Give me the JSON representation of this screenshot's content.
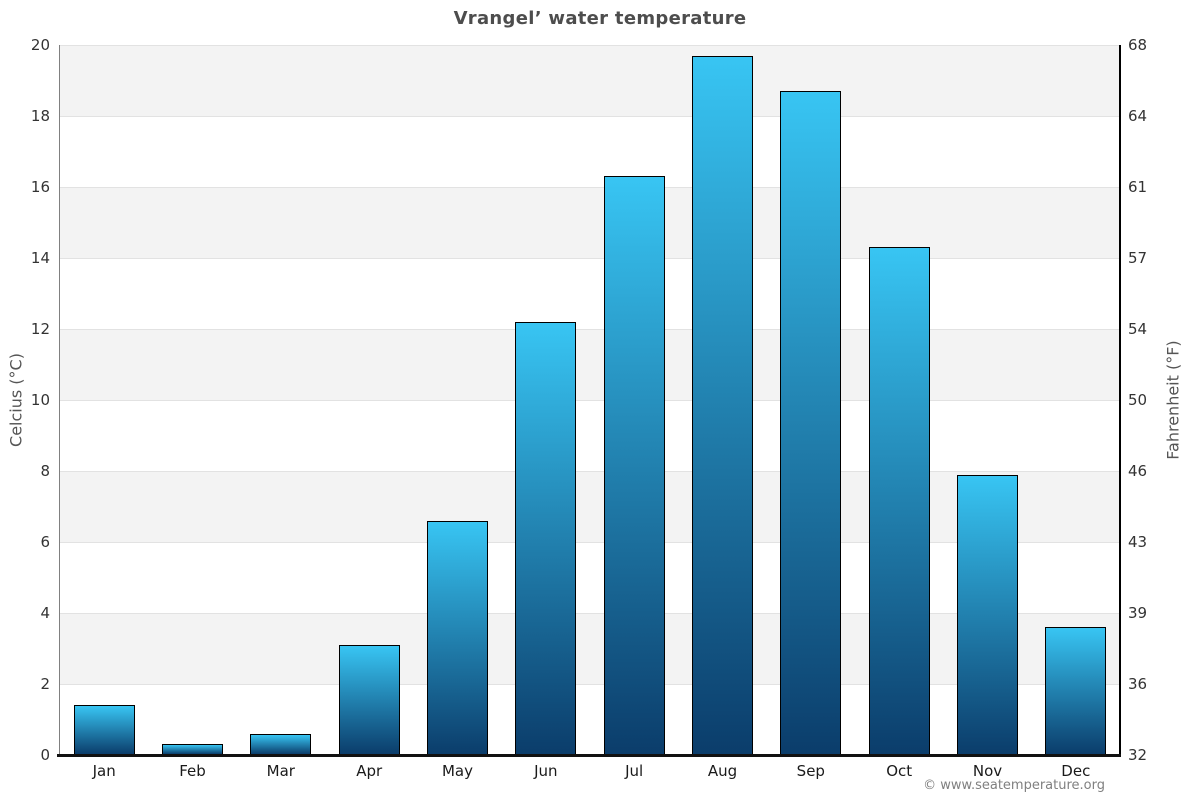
{
  "title": "Vrangel’ water temperature",
  "copyright": "© www.seatemperature.org",
  "y_axis_left": {
    "label": "Celcius (°C)"
  },
  "y_axis_right": {
    "label": "Fahrenheit (°F)"
  },
  "chart_data": {
    "type": "bar",
    "title": "Vrangel’ water temperature",
    "categories": [
      "Jan",
      "Feb",
      "Mar",
      "Apr",
      "May",
      "Jun",
      "Jul",
      "Aug",
      "Sep",
      "Oct",
      "Nov",
      "Dec"
    ],
    "values": [
      1.4,
      0.3,
      0.6,
      3.1,
      6.6,
      12.2,
      16.3,
      19.7,
      18.7,
      14.3,
      7.9,
      3.6
    ],
    "unit": "°C",
    "xlabel": "",
    "ylabel": "Celcius (°C)",
    "ylabel_right": "Fahrenheit (°F)",
    "ylim": [
      0,
      20
    ],
    "yticks": [
      0,
      2,
      4,
      6,
      8,
      10,
      12,
      14,
      16,
      18,
      20
    ],
    "yticks_right_labels": [
      "32",
      "36",
      "39",
      "43",
      "46",
      "50",
      "54",
      "57",
      "61",
      "64",
      "68"
    ],
    "grid": "alternating horizontal bands, horizontal gridlines every 2°C",
    "legend": "none",
    "colors": {
      "bar_top": "#38c5f3",
      "bar_bottom": "#0b3d6b",
      "bar_border": "#000000",
      "band_gray": "#f3f3f3",
      "band_white": "#ffffff",
      "gridline": "#e2e2e2",
      "axis_left_line": "#808080",
      "axis_right_line": "#000000",
      "axis_bottom_line": "#111111",
      "title_text": "#4d4d4d",
      "tick_text": "#333333",
      "copyright_text": "#808080"
    }
  }
}
